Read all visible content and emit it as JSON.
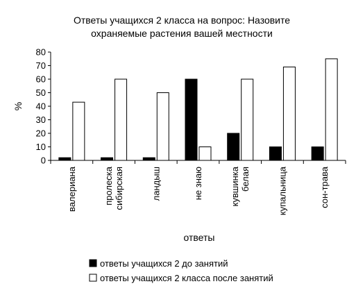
{
  "chart_data": {
    "type": "bar",
    "title": [
      "Ответы учащихся 2 класса на вопрос: Назовите",
      "охраняемые растения вашей местности"
    ],
    "xlabel": "ответы",
    "ylabel": "%",
    "ylim": [
      0,
      80
    ],
    "yticks": [
      0,
      10,
      20,
      30,
      40,
      50,
      60,
      70,
      80
    ],
    "grid": false,
    "legend_position": "bottom",
    "categories": [
      [
        "валериана"
      ],
      [
        "пролеска",
        "сибирская"
      ],
      [
        "ландыш"
      ],
      [
        "не знаю"
      ],
      [
        "кувшинка",
        "белая"
      ],
      [
        "купальница"
      ],
      [
        "сон-трава"
      ]
    ],
    "series": [
      {
        "name": "ответы учащихся 2 до занятий",
        "color": "#000000",
        "values": [
          2,
          2,
          2,
          60,
          20,
          10,
          10
        ]
      },
      {
        "name": "ответы учащихся 2 класса после занятий",
        "color": "#ffffff",
        "values": [
          43,
          60,
          50,
          10,
          60,
          69,
          75
        ]
      }
    ]
  }
}
